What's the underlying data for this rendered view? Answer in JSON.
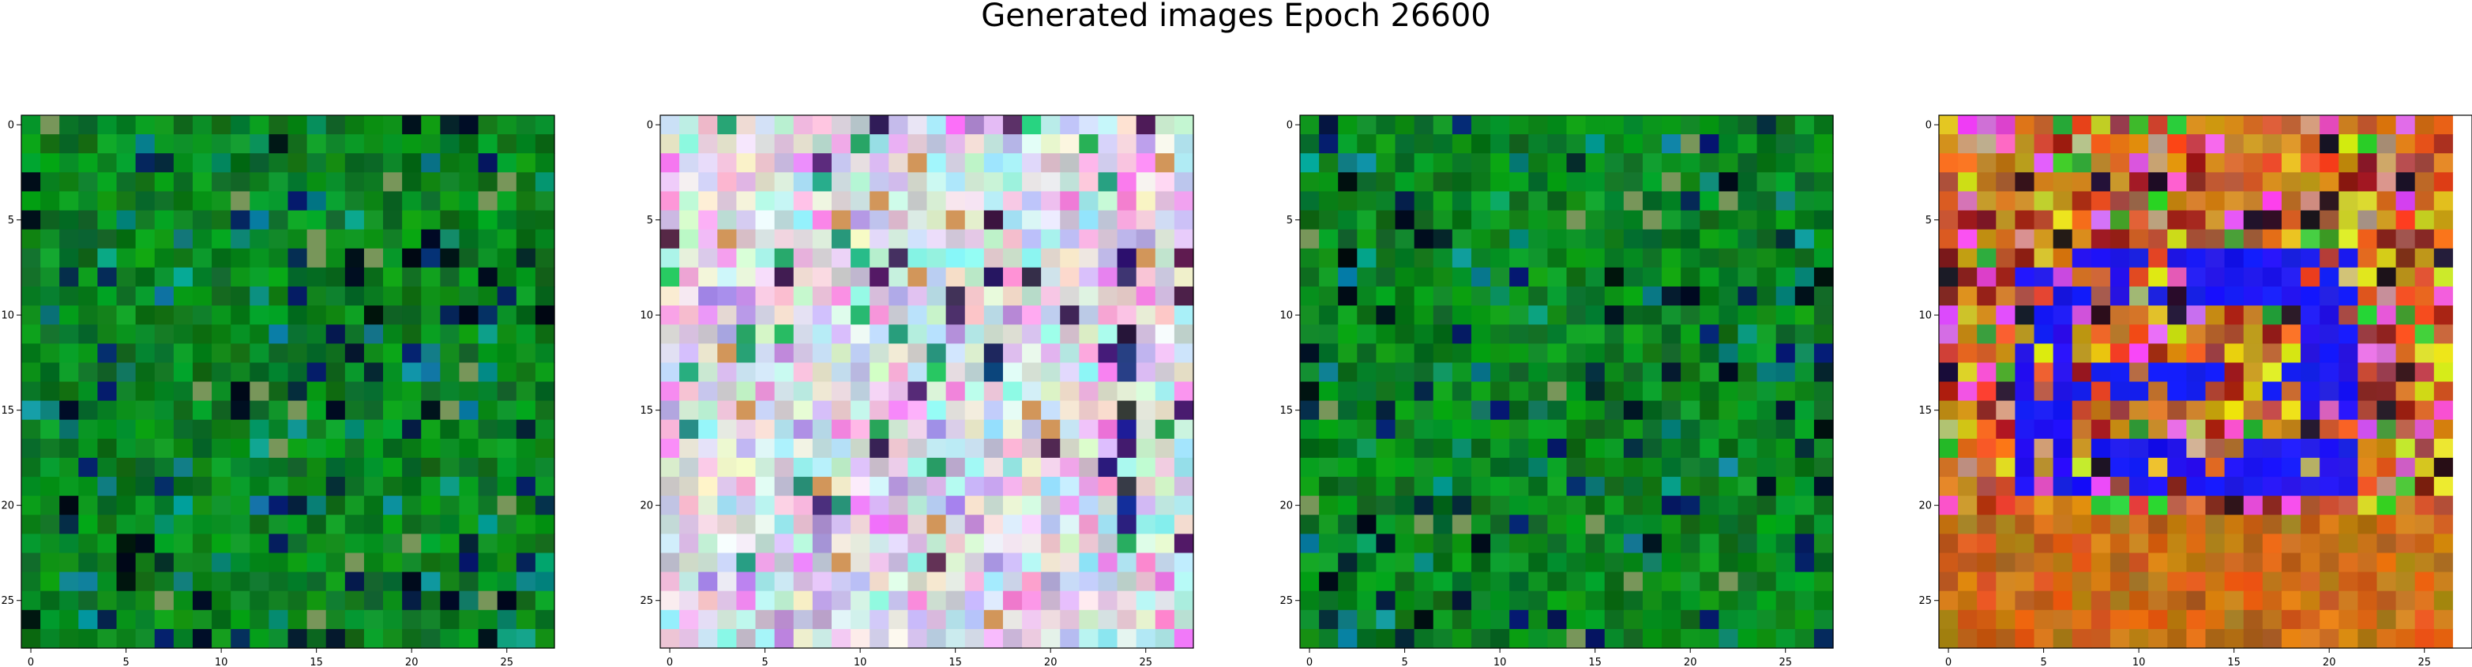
{
  "figure": {
    "title": "Generated images Epoch 26600"
  },
  "chart_data": [
    {
      "type": "heatmap",
      "panel": 1,
      "dominant_palette": "green",
      "xticks": [
        "0",
        "5",
        "10",
        "15",
        "20",
        "25"
      ],
      "yticks": [
        "0",
        "5",
        "10",
        "15",
        "20",
        "25"
      ],
      "xlim": [
        -0.5,
        27.5
      ],
      "ylim": [
        27.5,
        -0.5
      ],
      "grid": "28x28 RGB pixels"
    },
    {
      "type": "heatmap",
      "panel": 2,
      "dominant_palette": "pastel",
      "xticks": [
        "0",
        "5",
        "10",
        "15",
        "20",
        "25"
      ],
      "yticks": [
        "0",
        "5",
        "10",
        "15",
        "20",
        "25"
      ],
      "xlim": [
        -0.5,
        27.5
      ],
      "ylim": [
        27.5,
        -0.5
      ],
      "grid": "28x28 RGB pixels"
    },
    {
      "type": "heatmap",
      "panel": 3,
      "dominant_palette": "green",
      "xticks": [
        "0",
        "5",
        "10",
        "15",
        "20",
        "25"
      ],
      "yticks": [
        "0",
        "5",
        "10",
        "15",
        "20",
        "25"
      ],
      "xlim": [
        -0.5,
        27.5
      ],
      "ylim": [
        27.5,
        -0.5
      ],
      "grid": "28x28 RGB pixels"
    },
    {
      "type": "heatmap",
      "panel": 4,
      "dominant_palette": "warm with blue square",
      "xticks": [
        "0",
        "5",
        "10",
        "15",
        "20",
        "25"
      ],
      "yticks": [
        "0",
        "5",
        "10",
        "15",
        "20",
        "25"
      ],
      "xlim": [
        -0.5,
        27.5
      ],
      "ylim": [
        27.5,
        -0.5
      ],
      "grid": "28x28 RGB pixels"
    }
  ]
}
